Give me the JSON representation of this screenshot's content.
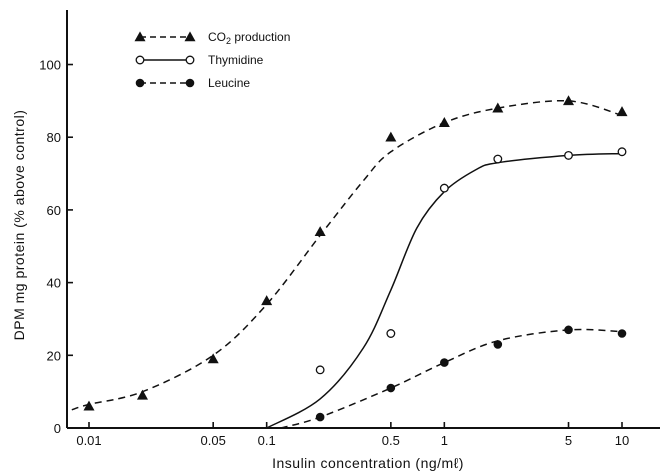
{
  "chart_data": {
    "type": "line",
    "title": "",
    "xlabel": "Insulin concentration (ng/mℓ)",
    "ylabel": "DPM mg protein (% above control)",
    "x_scale": "log",
    "xlim": [
      0.01,
      15
    ],
    "ylim": [
      0,
      115
    ],
    "x_ticks": [
      0.01,
      0.05,
      0.1,
      0.5,
      1,
      5,
      10
    ],
    "x_tick_labels": [
      "0.01",
      "0.05",
      "0.1",
      "0.5",
      "1",
      "5",
      "10"
    ],
    "y_ticks": [
      0,
      20,
      40,
      60,
      80,
      100
    ],
    "y_tick_labels": [
      "0",
      "20",
      "40",
      "60",
      "80",
      "100"
    ],
    "grid": false,
    "legend_position": "top-left",
    "series": [
      {
        "name": "CO2 production",
        "legend_label": "CO",
        "legend_sub": "2",
        "legend_suffix": " production",
        "marker": "triangle-filled",
        "line": "dashed",
        "x": [
          0.01,
          0.02,
          0.05,
          0.1,
          0.2,
          0.5,
          1,
          2,
          5,
          10
        ],
        "y": [
          6,
          9,
          19,
          35,
          54,
          80,
          84,
          88,
          90,
          87
        ],
        "curve_x": [
          0.008,
          0.01,
          0.02,
          0.05,
          0.1,
          0.2,
          0.35,
          0.5,
          1,
          2,
          5,
          10
        ],
        "curve_y": [
          5,
          6.5,
          10,
          20,
          34,
          53,
          68,
          76,
          84,
          88,
          90,
          86
        ]
      },
      {
        "name": "Thymidine",
        "legend_label": "Thymidine",
        "marker": "circle-open",
        "line": "solid",
        "x": [
          0.2,
          0.5,
          1,
          2,
          5,
          10
        ],
        "y": [
          16,
          26,
          66,
          74,
          75,
          76
        ],
        "curve_x": [
          0.1,
          0.2,
          0.35,
          0.5,
          0.7,
          1,
          1.5,
          2,
          5,
          10
        ],
        "curve_y": [
          0,
          8,
          22,
          38,
          55,
          65,
          71,
          73,
          75,
          75.5
        ]
      },
      {
        "name": "Leucine",
        "legend_label": "Leucine",
        "marker": "circle-filled",
        "line": "dashed",
        "x": [
          0.2,
          0.5,
          1,
          2,
          5,
          10
        ],
        "y": [
          3,
          11,
          18,
          23,
          27,
          26
        ],
        "curve_x": [
          0.12,
          0.2,
          0.5,
          1,
          2,
          5,
          10
        ],
        "curve_y": [
          0,
          3,
          11,
          18,
          24,
          27,
          26.5
        ]
      }
    ]
  }
}
